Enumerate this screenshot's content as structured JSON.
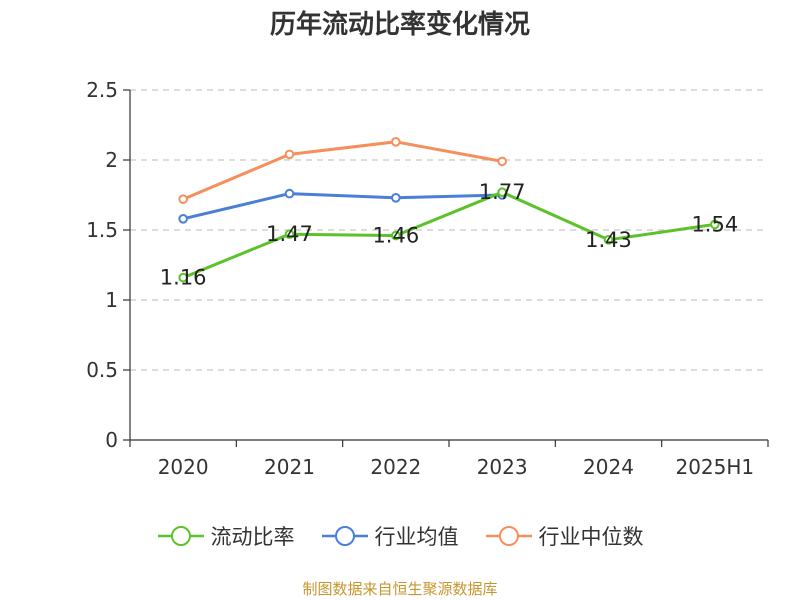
{
  "chart_data": {
    "type": "line",
    "title": "历年流动比率变化情况",
    "categories": [
      "2020",
      "2021",
      "2022",
      "2023",
      "2024",
      "2025H1"
    ],
    "y_ticks": [
      "0",
      "0.5",
      "1",
      "1.5",
      "2",
      "2.5"
    ],
    "ylim": [
      0,
      2.5
    ],
    "grid": "horizontal dashed",
    "legend_position": "bottom",
    "series": [
      {
        "name": "流动比率",
        "color": "#5cc22a",
        "values": [
          1.16,
          1.47,
          1.46,
          1.77,
          1.43,
          1.54
        ],
        "data_labels": [
          "1.16",
          "1.47",
          "1.46",
          "1.77",
          "1.43",
          "1.54"
        ]
      },
      {
        "name": "行业均值",
        "color": "#4a7fd6",
        "values": [
          1.58,
          1.76,
          1.73,
          1.75,
          null,
          null
        ]
      },
      {
        "name": "行业中位数",
        "color": "#f58f5c",
        "values": [
          1.72,
          2.04,
          2.13,
          1.99,
          null,
          null
        ]
      }
    ]
  },
  "source_text": "制图数据来自恒生聚源数据库"
}
